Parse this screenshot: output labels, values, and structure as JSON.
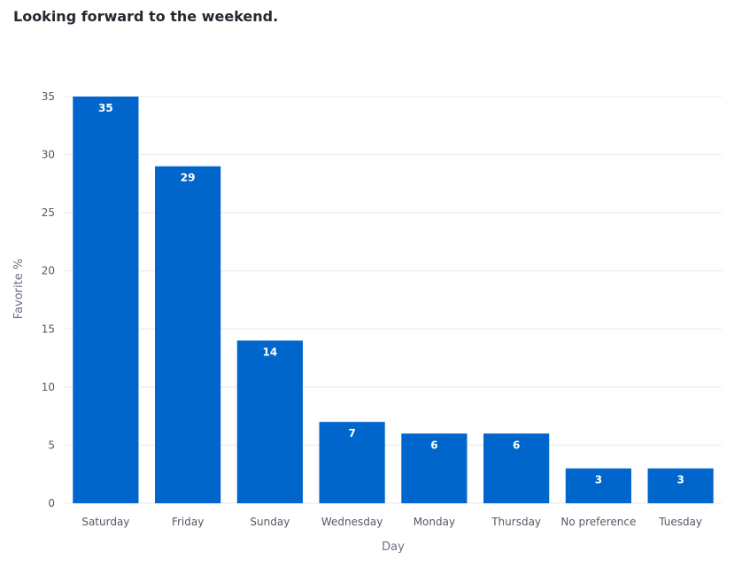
{
  "chart_data": {
    "type": "bar",
    "title": "Looking forward to the weekend.",
    "xlabel": "Day",
    "ylabel": "Favorite %",
    "categories": [
      "Saturday",
      "Friday",
      "Sunday",
      "Wednesday",
      "Monday",
      "Thursday",
      "No preference",
      "Tuesday"
    ],
    "values": [
      35,
      29,
      14,
      7,
      6,
      6,
      3,
      3
    ],
    "data_labels": [
      "35",
      "29",
      "14",
      "7",
      "6",
      "6",
      "3",
      "3"
    ],
    "ylim": [
      0,
      35
    ],
    "yticks": [
      0,
      5,
      10,
      15,
      20,
      25,
      30,
      35
    ],
    "grid": true,
    "legend": "none",
    "bar_color": "#0066cc",
    "grid_color": "#e6e7ea"
  }
}
